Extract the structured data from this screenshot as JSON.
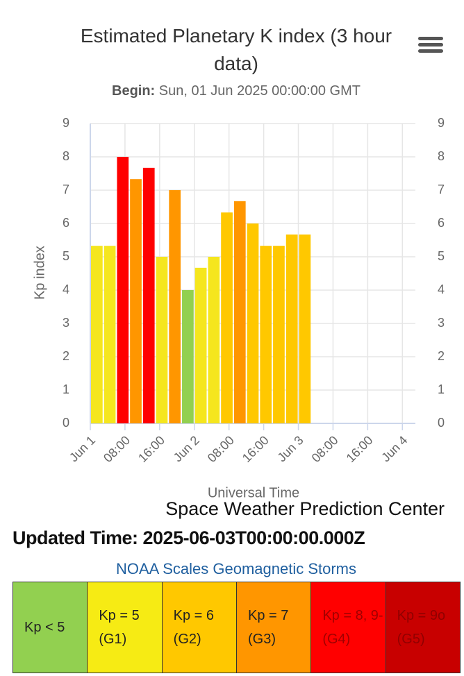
{
  "chart_data": {
    "type": "bar",
    "title": "Estimated Planetary K index (3 hour data)",
    "subtitle_prefix": "Begin:",
    "subtitle": "Sun, 01 Jun 2025 00:00:00 GMT",
    "x_label": "Universal Time",
    "y_label": "Kp index",
    "credits": "Space Weather Prediction Center",
    "x": [
      "2025-06-01T00:00Z",
      "2025-06-01T03:00Z",
      "2025-06-01T06:00Z",
      "2025-06-01T09:00Z",
      "2025-06-01T12:00Z",
      "2025-06-01T15:00Z",
      "2025-06-01T18:00Z",
      "2025-06-01T21:00Z",
      "2025-06-02T00:00Z",
      "2025-06-02T03:00Z",
      "2025-06-02T06:00Z",
      "2025-06-02T09:00Z",
      "2025-06-02T12:00Z",
      "2025-06-02T15:00Z",
      "2025-06-02T18:00Z",
      "2025-06-02T21:00Z",
      "2025-06-03T00:00Z"
    ],
    "values": [
      5.33,
      5.33,
      8,
      7.33,
      7.67,
      5,
      7,
      4,
      4.67,
      5,
      6.33,
      6.67,
      6,
      5.33,
      5.33,
      5.67,
      5.67
    ],
    "colors": [
      "#f5e61e",
      "#f5e61e",
      "#ff0000",
      "#ff9600",
      "#ff0000",
      "#f5e61e",
      "#ff9600",
      "#92d050",
      "#f5e61e",
      "#f5e61e",
      "#ffc800",
      "#ff9600",
      "#ffc800",
      "#ffc800",
      "#ffc800",
      "#ffc800",
      "#ffc800"
    ],
    "xlim": [
      "2025-06-01T00:00Z",
      "2025-06-04T03:00Z"
    ],
    "xticks": [
      {
        "value": "2025-06-01T00:00Z",
        "label": "Jun 1"
      },
      {
        "value": "2025-06-01T08:00Z",
        "label": "08:00"
      },
      {
        "value": "2025-06-01T16:00Z",
        "label": "16:00"
      },
      {
        "value": "2025-06-02T00:00Z",
        "label": "Jun 2"
      },
      {
        "value": "2025-06-02T08:00Z",
        "label": "08:00"
      },
      {
        "value": "2025-06-02T16:00Z",
        "label": "16:00"
      },
      {
        "value": "2025-06-03T00:00Z",
        "label": "Jun 3"
      },
      {
        "value": "2025-06-03T08:00Z",
        "label": "08:00"
      },
      {
        "value": "2025-06-03T16:00Z",
        "label": "16:00"
      },
      {
        "value": "2025-06-04T00:00Z",
        "label": "Jun 4"
      }
    ],
    "ylim": [
      0,
      9
    ],
    "yticks": [
      0,
      1,
      2,
      3,
      4,
      5,
      6,
      7,
      8,
      9
    ],
    "y2lim": [
      0,
      9
    ],
    "y2ticks": [
      0,
      1,
      2,
      3,
      4,
      5,
      6,
      7,
      8,
      9
    ],
    "grid": true
  },
  "updated": "Updated Time: 2025-06-03T00:00:00.000Z",
  "scales": {
    "title": "NOAA Scales Geomagnetic Storms",
    "cells": [
      {
        "text": "Kp < 5",
        "color": "#92d050",
        "text_color": "#222222"
      },
      {
        "text": "Kp = 5 (G1)",
        "color": "#f6eb14",
        "text_color": "#222222"
      },
      {
        "text": "Kp = 6 (G2)",
        "color": "#ffc800",
        "text_color": "#222222"
      },
      {
        "text": "Kp = 7 (G3)",
        "color": "#ff9600",
        "text_color": "#222222"
      },
      {
        "text": "Kp = 8, 9- (G4)",
        "color": "#ff0000",
        "text_color": "#a00000"
      },
      {
        "text": "Kp = 9o (G5)",
        "color": "#c80000",
        "text_color": "#900000"
      }
    ]
  }
}
